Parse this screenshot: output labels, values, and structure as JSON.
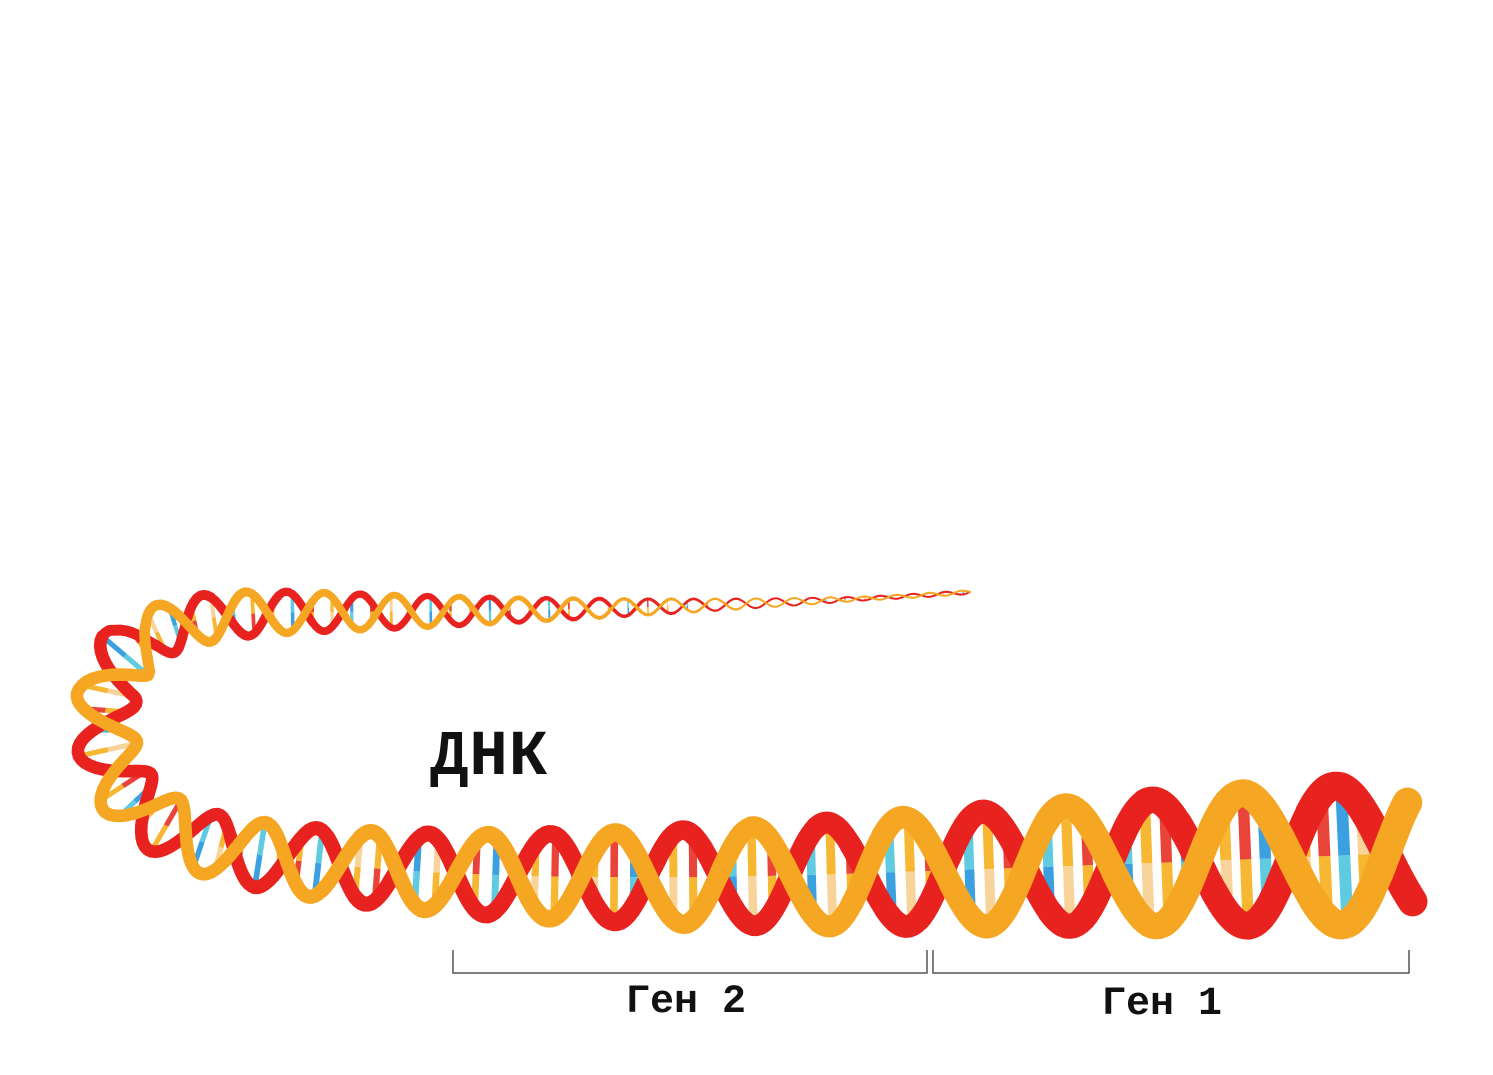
{
  "diagram": {
    "dna_label": "ДНК",
    "genes": [
      {
        "label": "Ген 2"
      },
      {
        "label": "Ген 1"
      }
    ]
  },
  "colors": {
    "strand_back": "#e8221e",
    "strand_front": "#f5a623",
    "base_cyan": "#5ecbe0",
    "base_blue": "#3aa0e0",
    "base_orange": "#f7b733",
    "base_red": "#e8443a",
    "base_light": "#f9d49a",
    "bracket": "#555555"
  }
}
